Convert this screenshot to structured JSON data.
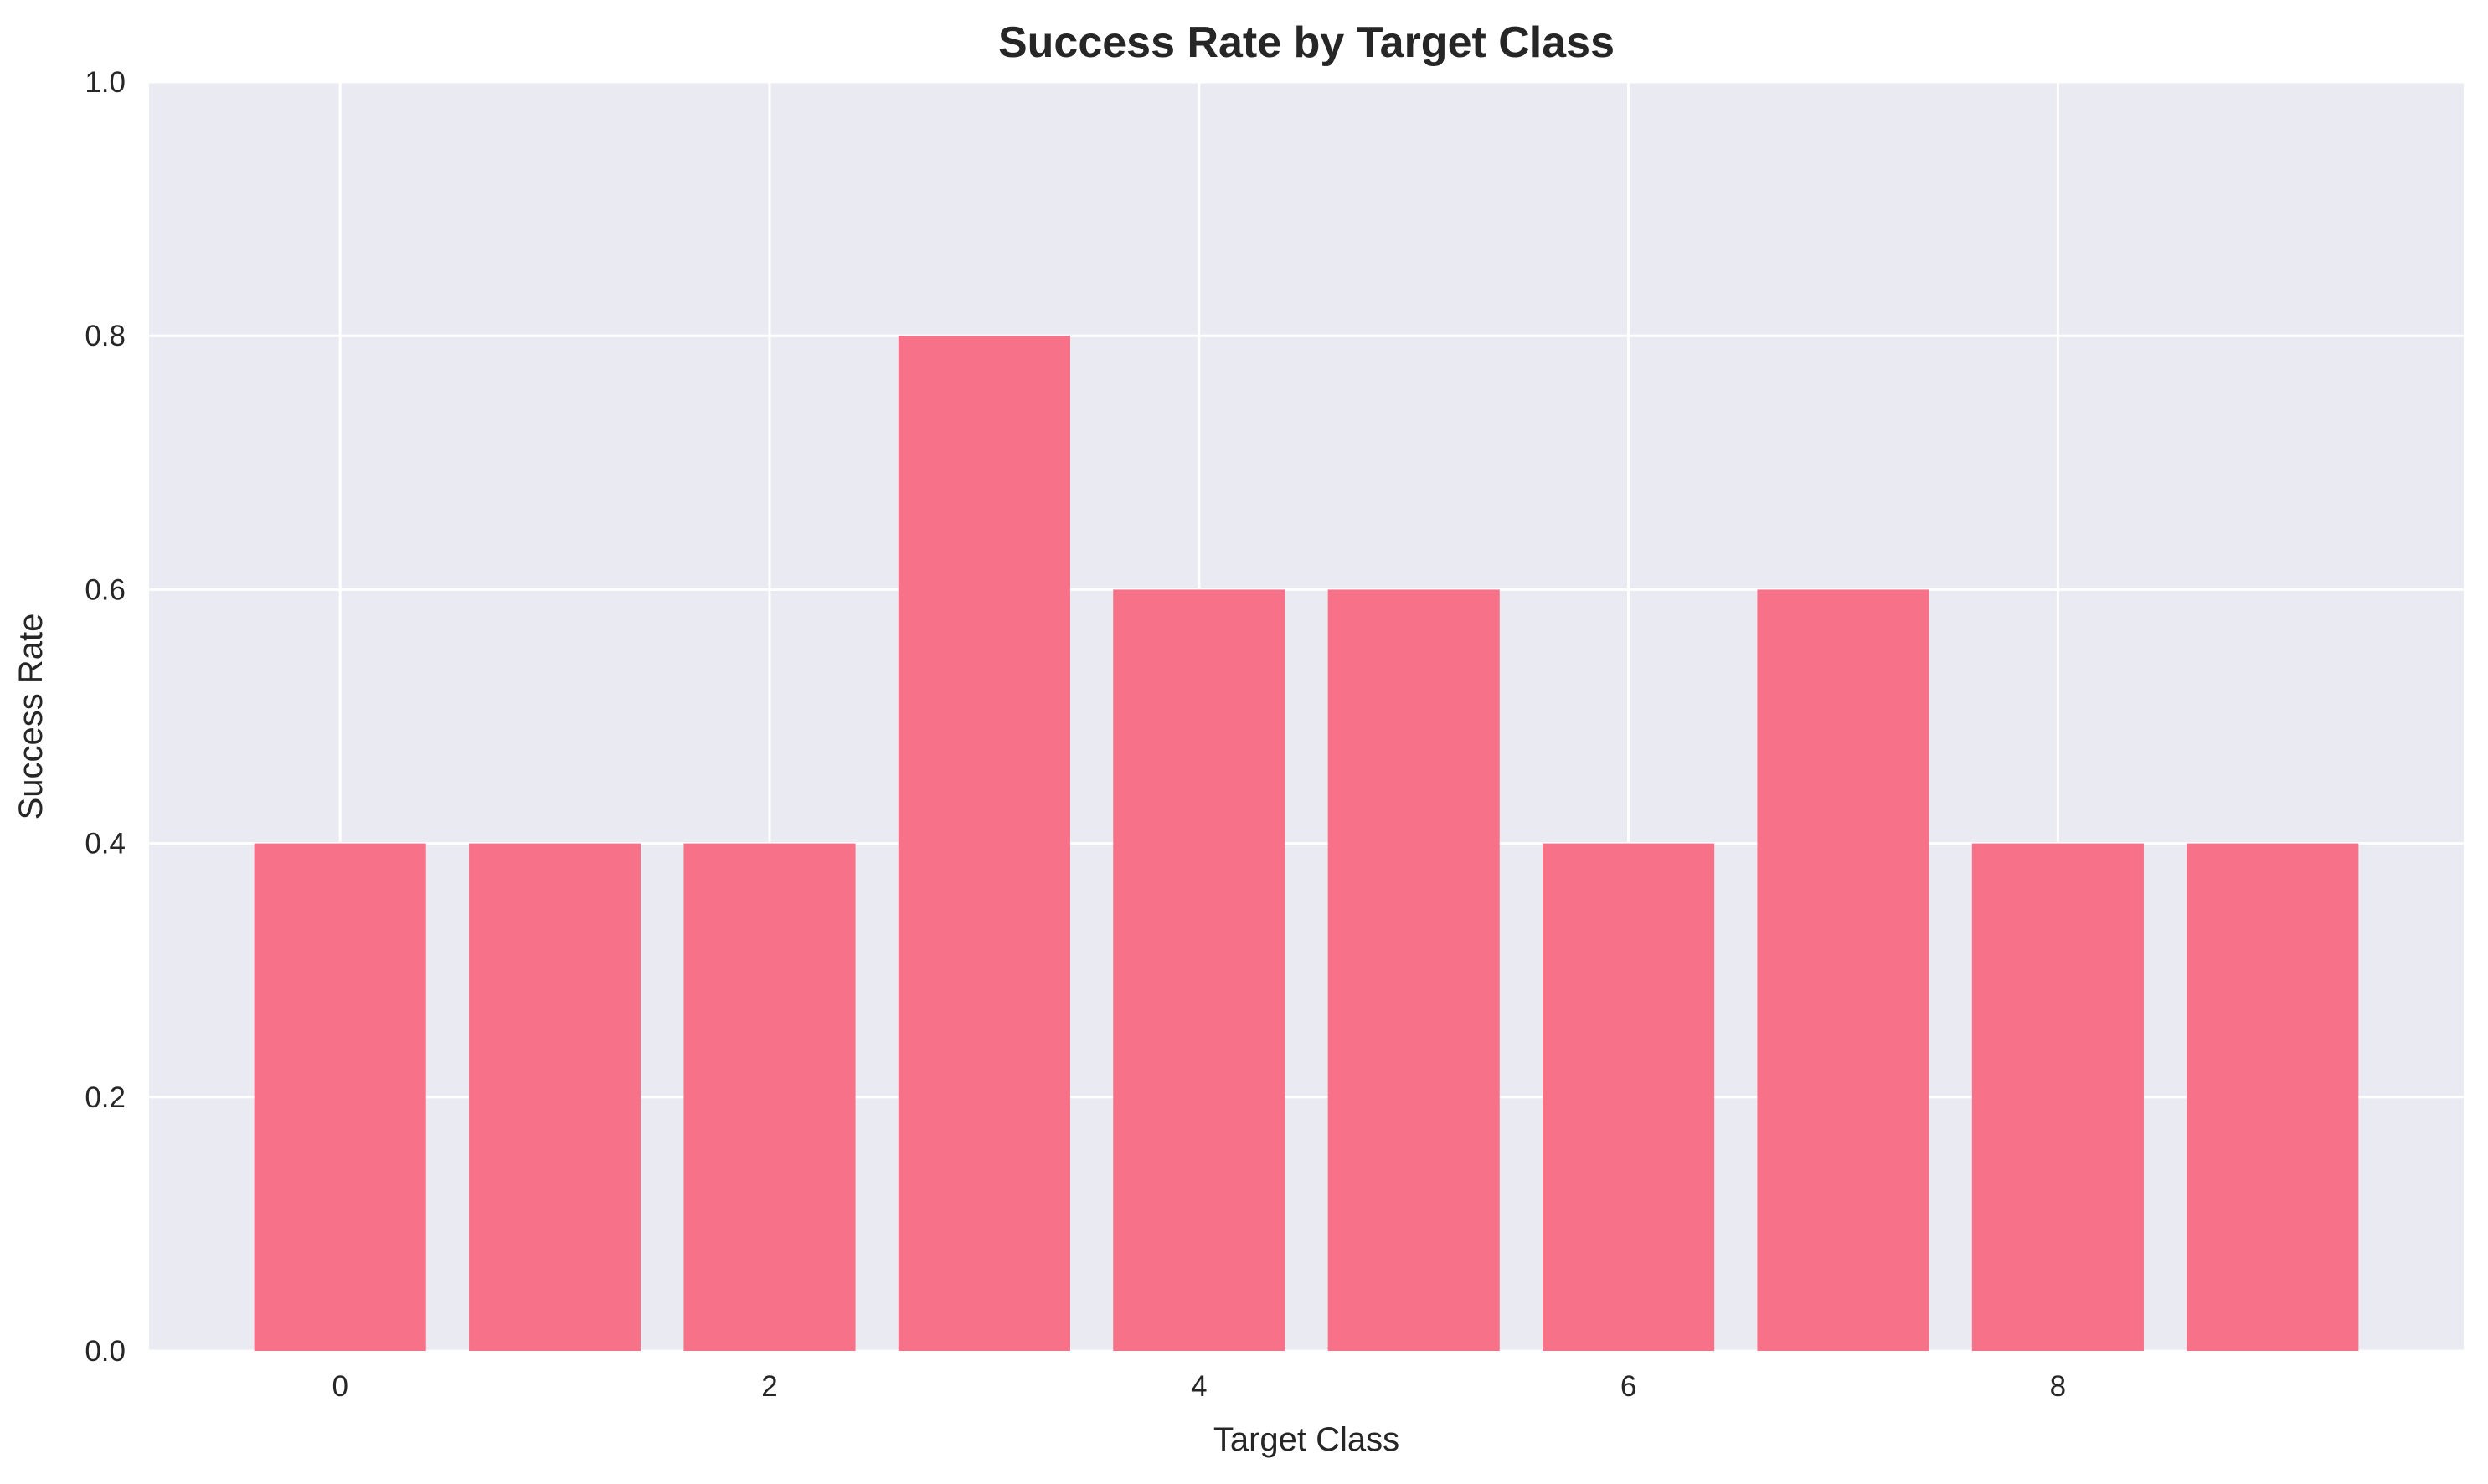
{
  "chart_data": {
    "type": "bar",
    "title": "Success Rate by Target Class",
    "xlabel": "Target Class",
    "ylabel": "Success Rate",
    "categories": [
      0,
      1,
      2,
      3,
      4,
      5,
      6,
      7,
      8,
      9
    ],
    "values": [
      0.4,
      0.4,
      0.4,
      0.8,
      0.6,
      0.6,
      0.4,
      0.6,
      0.4,
      0.4
    ],
    "xticks": [
      0,
      2,
      4,
      6,
      8
    ],
    "xtick_labels": [
      "0",
      "2",
      "4",
      "6",
      "8"
    ],
    "yticks": [
      0.0,
      0.2,
      0.4,
      0.6,
      0.8,
      1.0
    ],
    "ytick_labels": [
      "0.0",
      "0.2",
      "0.4",
      "0.6",
      "0.8",
      "1.0"
    ],
    "xlim": [
      -0.89,
      9.89
    ],
    "ylim": [
      0,
      1
    ],
    "bar_width": 0.8,
    "grid": true,
    "colors": {
      "bar": "#f77189",
      "plot_background": "#eaeaf2",
      "grid": "#ffffff",
      "text": "#262626"
    }
  }
}
